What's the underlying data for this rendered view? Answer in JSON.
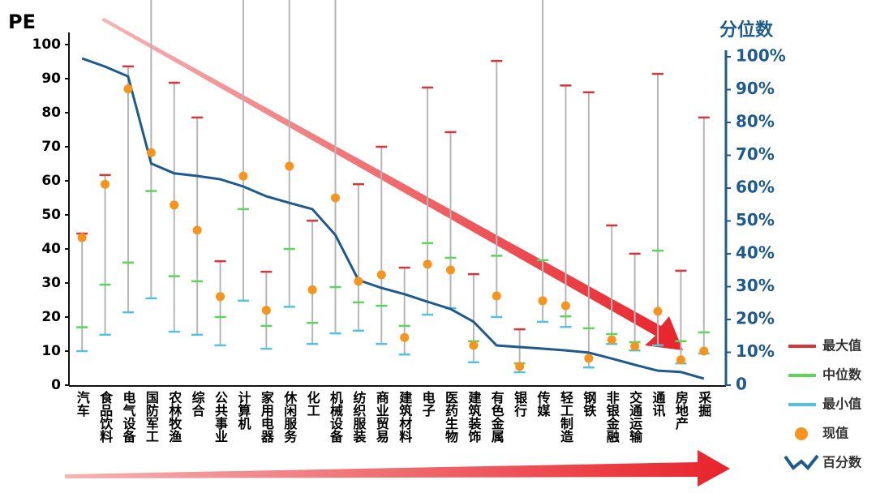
{
  "chart_data": {
    "type": "range",
    "y_label": "PE",
    "y2_label": "分位数",
    "categories": [
      "汽车",
      "食品饮料",
      "电气设备",
      "国防军工",
      "农林牧渔",
      "综合",
      "公共事业",
      "计算机",
      "家用电器",
      "休闲服务",
      "化工",
      "机械设备",
      "纺织服装",
      "商业贸易",
      "建筑材料",
      "电子",
      "医药生物",
      "建筑装饰",
      "有色金属",
      "银行",
      "传媒",
      "轻工制造",
      "钢铁",
      "非银金融",
      "交通运输",
      "通讯",
      "房地产",
      "采掘"
    ],
    "series": [
      {
        "name": "最大值",
        "color": "#d8343c",
        "values": [
          44.5,
          61.7,
          93.6,
          120,
          88.8,
          78.6,
          36.4,
          120,
          33.3,
          120,
          48.3,
          120,
          59,
          70,
          34.5,
          87.4,
          74.3,
          32.6,
          95.2,
          16.4,
          120,
          88,
          86,
          46.9,
          38.6,
          91.4,
          33.6,
          78.6
        ]
      },
      {
        "name": "中位数",
        "color": "#5ad65a",
        "values": [
          17,
          29.5,
          36,
          57,
          32,
          30.5,
          20,
          51.7,
          17.4,
          40,
          18.3,
          28.8,
          24.3,
          23.3,
          17.4,
          41.7,
          37.4,
          12.9,
          38,
          6.4,
          36.7,
          20.2,
          16.7,
          15,
          12.6,
          39.5,
          12.9,
          15.5
        ]
      },
      {
        "name": "最小值",
        "color": "#4fc3e0",
        "values": [
          10,
          14.8,
          21.4,
          25.5,
          15.7,
          14.8,
          11.7,
          24.8,
          10.7,
          23,
          12.1,
          15.2,
          16,
          12.1,
          9,
          20.7,
          22.6,
          6.7,
          20,
          3.8,
          18.6,
          17.1,
          5.2,
          12.1,
          10.2,
          11.7,
          6.4,
          9.3
        ]
      },
      {
        "name": "现值",
        "color": "#f7941d",
        "values": [
          43.3,
          59,
          87,
          68.3,
          52.9,
          45.5,
          26,
          61.4,
          22,
          64.3,
          28,
          55,
          30.5,
          32.4,
          14,
          35.5,
          33.8,
          11.7,
          26.2,
          5.5,
          24.8,
          23.3,
          7.9,
          13.3,
          11.4,
          21.7,
          7.4,
          10
        ]
      },
      {
        "name": "百分数",
        "color": "#1f5a8c",
        "axis": "y2",
        "values": [
          99.5,
          97,
          94,
          67.5,
          64.5,
          63.7,
          62.7,
          60.5,
          57.5,
          55.5,
          53.6,
          45.7,
          32,
          29.6,
          27.7,
          25.4,
          23.2,
          19.3,
          12.1,
          11.6,
          11.1,
          10.6,
          9.9,
          8.1,
          6.2,
          4.4,
          4,
          2
        ]
      }
    ],
    "ylim": [
      0,
      100
    ],
    "yticks": [
      0,
      10,
      20,
      30,
      40,
      50,
      60,
      70,
      80,
      90,
      100
    ],
    "y2lim": [
      0,
      100
    ],
    "y2ticks": [
      0,
      {
        "value": 10,
        "label": "10%"
      },
      {
        "value": 20,
        "label": "20%"
      },
      {
        "value": 30,
        "label": "30%"
      },
      {
        "value": 40,
        "label": "40%"
      },
      {
        "value": 50,
        "label": "50%"
      },
      {
        "value": 60,
        "label": "60%"
      },
      {
        "value": 70,
        "label": "70%"
      },
      {
        "value": 80,
        "label": "80%"
      },
      {
        "value": 90,
        "label": "90%"
      },
      {
        "value": 100,
        "label": "100%"
      }
    ],
    "range_color": "#b5b5b5"
  }
}
